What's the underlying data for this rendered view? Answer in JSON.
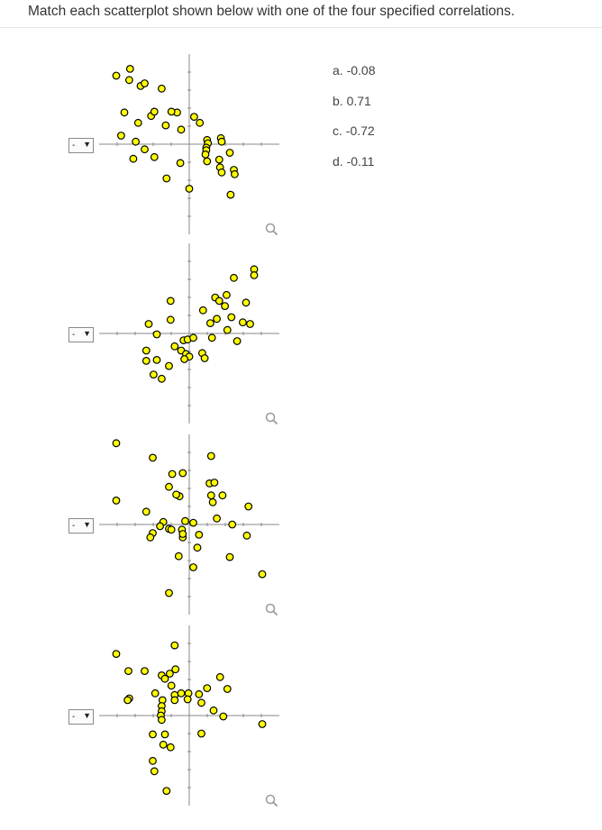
{
  "instruction": "Match each scatterplot shown below with one of the four specified correlations.",
  "dropdowns": [
    {
      "selected": "-"
    },
    {
      "selected": "-"
    },
    {
      "selected": "-"
    },
    {
      "selected": "-"
    }
  ],
  "answers": [
    "a. -0.08",
    "b. 0.71",
    "c. -0.72",
    "d. -0.11"
  ],
  "icons": {
    "zoom": "magnifier-icon",
    "dropdown": "chevron-down-icon"
  },
  "colors": {
    "point_fill": "#ffff00",
    "point_stroke": "#000000",
    "axis": "#888888"
  },
  "chart_data": [
    {
      "type": "scatter",
      "points": [
        [
          -0.9,
          0.8
        ],
        [
          -0.74,
          0.75
        ],
        [
          -0.6,
          0.68
        ],
        [
          -0.73,
          0.88
        ],
        [
          -0.55,
          0.71
        ],
        [
          -0.34,
          0.65
        ],
        [
          -0.8,
          0.37
        ],
        [
          -0.47,
          0.33
        ],
        [
          -0.43,
          0.38
        ],
        [
          -0.63,
          0.25
        ],
        [
          -0.29,
          0.22
        ],
        [
          -0.15,
          0.37
        ],
        [
          -0.1,
          0.17
        ],
        [
          0.13,
          0.25
        ],
        [
          0.06,
          0.32
        ],
        [
          -0.22,
          0.38
        ],
        [
          0.39,
          0.07
        ],
        [
          0.22,
          0.05
        ],
        [
          0.23,
          0.01
        ],
        [
          0.21,
          -0.04
        ],
        [
          0.21,
          -0.07
        ],
        [
          0.4,
          0.03
        ],
        [
          0.2,
          -0.12
        ],
        [
          0.22,
          -0.2
        ],
        [
          0.37,
          -0.18
        ],
        [
          0.38,
          -0.27
        ],
        [
          0.4,
          -0.33
        ],
        [
          0.55,
          -0.3
        ],
        [
          0.56,
          -0.35
        ],
        [
          0.5,
          -0.1
        ],
        [
          -0.66,
          0.03
        ],
        [
          -0.84,
          0.1
        ],
        [
          -0.55,
          -0.06
        ],
        [
          -0.69,
          -0.17
        ],
        [
          -0.43,
          -0.15
        ],
        [
          -0.11,
          -0.22
        ],
        [
          -0.28,
          -0.4
        ],
        [
          0.0,
          -0.52
        ],
        [
          0.51,
          -0.59
        ]
      ]
    },
    {
      "type": "scatter",
      "points": [
        [
          0.55,
          0.65
        ],
        [
          0.8,
          0.75
        ],
        [
          0.8,
          0.68
        ],
        [
          0.46,
          0.45
        ],
        [
          0.32,
          0.42
        ],
        [
          0.37,
          0.38
        ],
        [
          0.44,
          0.32
        ],
        [
          0.7,
          0.36
        ],
        [
          -0.23,
          0.38
        ],
        [
          0.17,
          0.27
        ],
        [
          0.34,
          0.17
        ],
        [
          0.52,
          0.19
        ],
        [
          0.66,
          0.13
        ],
        [
          0.75,
          0.11
        ],
        [
          0.26,
          0.12
        ],
        [
          -0.23,
          0.16
        ],
        [
          -0.5,
          0.11
        ],
        [
          0.47,
          0.04
        ],
        [
          0.28,
          -0.05
        ],
        [
          0.59,
          -0.09
        ],
        [
          -0.4,
          -0.01
        ],
        [
          -0.07,
          -0.08
        ],
        [
          -0.02,
          -0.07
        ],
        [
          0.05,
          -0.05
        ],
        [
          -0.18,
          -0.15
        ],
        [
          -0.1,
          -0.2
        ],
        [
          -0.04,
          -0.24
        ],
        [
          0.0,
          -0.27
        ],
        [
          0.16,
          -0.23
        ],
        [
          0.19,
          -0.29
        ],
        [
          -0.06,
          -0.3
        ],
        [
          -0.53,
          -0.2
        ],
        [
          -0.53,
          -0.32
        ],
        [
          -0.4,
          -0.31
        ],
        [
          -0.25,
          -0.38
        ],
        [
          -0.44,
          -0.48
        ],
        [
          -0.34,
          -0.53
        ]
      ]
    },
    {
      "type": "scatter",
      "points": [
        [
          -0.9,
          0.95
        ],
        [
          -0.45,
          0.78
        ],
        [
          0.27,
          0.8
        ],
        [
          -0.21,
          0.59
        ],
        [
          -0.08,
          0.6
        ],
        [
          0.25,
          0.48
        ],
        [
          0.31,
          0.49
        ],
        [
          -0.25,
          0.44
        ],
        [
          -0.12,
          0.33
        ],
        [
          -0.16,
          0.35
        ],
        [
          0.27,
          0.34
        ],
        [
          0.41,
          0.34
        ],
        [
          0.29,
          0.26
        ],
        [
          0.73,
          0.21
        ],
        [
          -0.9,
          0.28
        ],
        [
          -0.53,
          0.15
        ],
        [
          0.34,
          0.07
        ],
        [
          -0.32,
          0.03
        ],
        [
          -0.05,
          0.04
        ],
        [
          0.05,
          0.02
        ],
        [
          -0.36,
          -0.02
        ],
        [
          -0.25,
          -0.05
        ],
        [
          -0.22,
          -0.06
        ],
        [
          -0.09,
          -0.06
        ],
        [
          0.53,
          0.0
        ],
        [
          -0.45,
          -0.1
        ],
        [
          -0.48,
          -0.15
        ],
        [
          -0.08,
          -0.15
        ],
        [
          -0.08,
          -0.11
        ],
        [
          0.12,
          -0.12
        ],
        [
          0.71,
          -0.13
        ],
        [
          0.1,
          -0.27
        ],
        [
          -0.13,
          -0.37
        ],
        [
          0.05,
          -0.5
        ],
        [
          0.5,
          -0.38
        ],
        [
          -0.25,
          -0.8
        ],
        [
          0.9,
          -0.58
        ]
      ]
    },
    {
      "type": "scatter",
      "points": [
        [
          -0.9,
          0.72
        ],
        [
          -0.18,
          0.82
        ],
        [
          -0.75,
          0.52
        ],
        [
          -0.55,
          0.52
        ],
        [
          -0.34,
          0.47
        ],
        [
          -0.24,
          0.49
        ],
        [
          -0.3,
          0.43
        ],
        [
          -0.17,
          0.54
        ],
        [
          0.38,
          0.45
        ],
        [
          -0.22,
          0.35
        ],
        [
          0.22,
          0.32
        ],
        [
          0.47,
          0.31
        ],
        [
          -0.42,
          0.26
        ],
        [
          -0.18,
          0.24
        ],
        [
          -0.1,
          0.26
        ],
        [
          -0.01,
          0.26
        ],
        [
          0.12,
          0.25
        ],
        [
          -0.33,
          0.18
        ],
        [
          -0.18,
          0.18
        ],
        [
          -0.02,
          0.19
        ],
        [
          0.15,
          0.15
        ],
        [
          -0.74,
          0.2
        ],
        [
          -0.76,
          0.18
        ],
        [
          -0.34,
          0.11
        ],
        [
          -0.34,
          0.05
        ],
        [
          -0.35,
          0.0
        ],
        [
          -0.34,
          -0.05
        ],
        [
          0.3,
          0.06
        ],
        [
          0.42,
          -0.01
        ],
        [
          0.9,
          -0.1
        ],
        [
          0.15,
          -0.21
        ],
        [
          -0.45,
          -0.22
        ],
        [
          -0.3,
          -0.22
        ],
        [
          -0.32,
          -0.34
        ],
        [
          -0.23,
          -0.37
        ],
        [
          -0.45,
          -0.53
        ],
        [
          -0.43,
          -0.65
        ],
        [
          -0.28,
          -0.88
        ]
      ]
    }
  ]
}
